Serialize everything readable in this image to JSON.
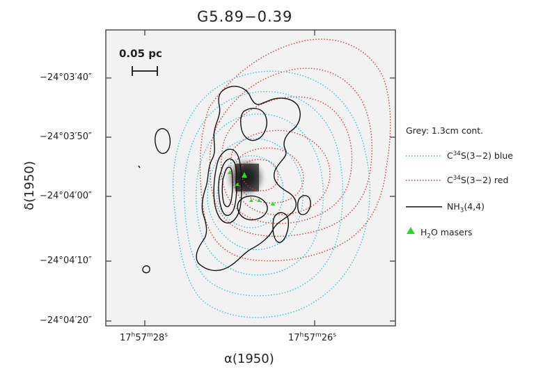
{
  "title": "G5.89−0.39",
  "xlabel": "α(1950)",
  "ylabel": "δ(1950)",
  "scalebar": "0.05 pc",
  "yticks": [
    {
      "deg": "−24°",
      "min": "03′",
      "sec": "40″"
    },
    {
      "deg": "−24°",
      "min": "03′",
      "sec": "50″"
    },
    {
      "deg": "−24°",
      "min": "04′",
      "sec": "00″"
    },
    {
      "deg": "−24°",
      "min": "04′",
      "sec": "10″"
    },
    {
      "deg": "−24°",
      "min": "04′",
      "sec": "20″"
    }
  ],
  "xticks": [
    {
      "h": "17",
      "hu": "h",
      "m": "57",
      "mu": "m",
      "s": "28",
      "su": "s"
    },
    {
      "h": "17",
      "hu": "h",
      "m": "57",
      "mu": "m",
      "s": "26",
      "su": "s"
    }
  ],
  "legend": {
    "grey": "Grey: 1.3cm cont.",
    "blue": {
      "pre": "C",
      "sup": "34",
      "post": "S(3−2) blue"
    },
    "red": {
      "pre": "C",
      "sup": "34",
      "post": "S(3−2) red"
    },
    "black": {
      "pre": "NH",
      "sub": "3",
      "post": "(4,4)"
    },
    "maser": {
      "pre": "H",
      "sub": "2",
      "post": "O masers"
    }
  },
  "colors": {
    "blue": "#35c6df",
    "red": "#d43a3a",
    "black": "#111111",
    "maser": "#22dd22",
    "frame": "#333333"
  }
}
